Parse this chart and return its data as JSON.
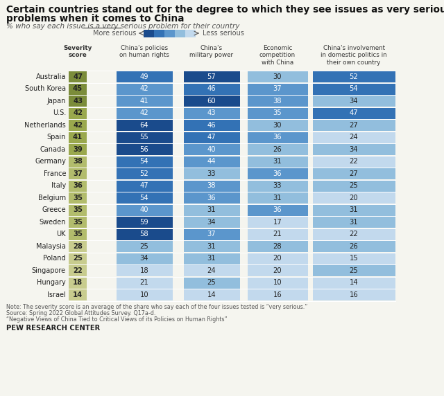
{
  "title_line1": "Certain countries stand out for the degree to which they see issues as very serious",
  "title_line2": "problems when it comes to China",
  "subtitle_pre": "% who say each issue is a ",
  "subtitle_underlined": "very serious",
  "subtitle_post": " problem for their country",
  "legend_left": "More serious",
  "legend_right": "Less serious",
  "col_headers": [
    "China's policies\non human rights",
    "China's\nmilitary power",
    "Economic\ncompetition\nwith China",
    "China's involvement\nin domestic politics in\ntheir own country"
  ],
  "severity_header_line1": "Severity",
  "severity_header_line2": "score",
  "countries": [
    "Australia",
    "South Korea",
    "Japan",
    "U.S.",
    "Netherlands",
    "Spain",
    "Canada",
    "Germany",
    "France",
    "Italy",
    "Belgium",
    "Greece",
    "Sweden",
    "UK",
    "Malaysia",
    "Poland",
    "Singapore",
    "Hungary",
    "Israel"
  ],
  "severity_scores": [
    47,
    45,
    43,
    42,
    42,
    41,
    39,
    38,
    37,
    36,
    35,
    35,
    35,
    35,
    28,
    25,
    22,
    18,
    14
  ],
  "data": [
    [
      49,
      57,
      30,
      52
    ],
    [
      42,
      46,
      37,
      54
    ],
    [
      41,
      60,
      38,
      34
    ],
    [
      42,
      43,
      35,
      47
    ],
    [
      64,
      46,
      30,
      27
    ],
    [
      55,
      47,
      36,
      24
    ],
    [
      56,
      40,
      26,
      34
    ],
    [
      54,
      44,
      31,
      22
    ],
    [
      52,
      33,
      36,
      27
    ],
    [
      47,
      38,
      33,
      25
    ],
    [
      54,
      36,
      31,
      20
    ],
    [
      40,
      31,
      36,
      31
    ],
    [
      59,
      34,
      17,
      31
    ],
    [
      58,
      37,
      21,
      22
    ],
    [
      25,
      31,
      28,
      26
    ],
    [
      34,
      31,
      20,
      15
    ],
    [
      18,
      24,
      20,
      25
    ],
    [
      21,
      25,
      10,
      14
    ],
    [
      10,
      14,
      16,
      16
    ]
  ],
  "note_lines": [
    "Note: The severity score is an average of the share who say each of the four issues tested is “very serious.”",
    "Source: Spring 2022 Global Attitudes Survey. Q17a-d.",
    "“Negative Views of China Tied to Critical Views of its Policies on Human Rights”"
  ],
  "footer": "PEW RESEARCH CENTER",
  "color_dark": "#1a4b8c",
  "color_mid_dark": "#3372b5",
  "color_mid": "#5b96cc",
  "color_light": "#92bedd",
  "color_very_light": "#c2d9ed",
  "sev_color_high": "#7b8c3a",
  "sev_color_mh": "#9aa84d",
  "sev_color_mid": "#b2bc6c",
  "sev_color_low": "#c8cc8e",
  "bg_color": "#f5f5ef",
  "white": "#ffffff",
  "dark_text": "#222222",
  "mid_text": "#555555"
}
